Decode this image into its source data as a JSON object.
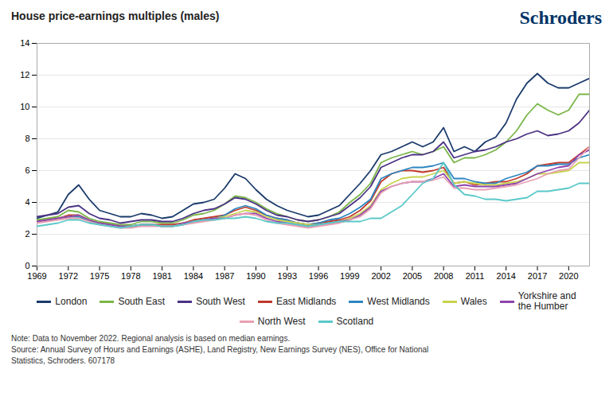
{
  "chart_data": {
    "type": "line",
    "title": "House price-earnings multiples (males)",
    "annotations": [
      {
        "text": "Schroders",
        "color": "#003366"
      }
    ],
    "note": "Note: Data to November 2022. Regional analysis is based on median earnings.\nSource: Annual Survey of Hours and Earnings (ASHE), Land Registry, New Earnings Survey (NES), Office for National\nStatistics, Schroders. 607178",
    "x": [
      1969,
      1970,
      1971,
      1972,
      1973,
      1974,
      1975,
      1976,
      1977,
      1978,
      1979,
      1980,
      1981,
      1982,
      1983,
      1984,
      1985,
      1986,
      1987,
      1988,
      1989,
      1990,
      1991,
      1992,
      1993,
      1994,
      1995,
      1996,
      1997,
      1998,
      1999,
      2000,
      2001,
      2002,
      2003,
      2004,
      2005,
      2006,
      2007,
      2008,
      2009,
      2010,
      2011,
      2012,
      2013,
      2014,
      2015,
      2016,
      2017,
      2018,
      2019,
      2020,
      2021,
      2022
    ],
    "xlim": [
      1969,
      2022
    ],
    "xticks": [
      1969,
      1972,
      1975,
      1978,
      1981,
      1984,
      1987,
      1990,
      1993,
      1996,
      1999,
      2002,
      2005,
      2008,
      2011,
      2014,
      2017,
      2020
    ],
    "ylim": [
      0,
      14
    ],
    "yticks": [
      0,
      2,
      4,
      6,
      8,
      10,
      12,
      14
    ],
    "grid": "y",
    "legend": "bottom",
    "series": [
      {
        "name": "London",
        "color": "#1a3a6b",
        "values": [
          3.0,
          3.2,
          3.4,
          4.5,
          5.1,
          4.2,
          3.5,
          3.3,
          3.1,
          3.1,
          3.3,
          3.2,
          3.0,
          3.1,
          3.5,
          3.9,
          4.0,
          4.2,
          4.9,
          5.8,
          5.5,
          4.8,
          4.2,
          3.8,
          3.5,
          3.3,
          3.1,
          3.2,
          3.5,
          3.8,
          4.5,
          5.2,
          6.0,
          7.0,
          7.2,
          7.5,
          7.8,
          7.5,
          7.8,
          8.7,
          7.2,
          7.5,
          7.2,
          7.8,
          8.1,
          9.0,
          10.5,
          11.5,
          12.1,
          11.5,
          11.2,
          11.2,
          11.5,
          11.8
        ]
      },
      {
        "name": "South East",
        "color": "#7ab648",
        "values": [
          2.9,
          3.0,
          3.1,
          3.5,
          3.4,
          3.0,
          2.8,
          2.7,
          2.6,
          2.6,
          2.8,
          2.8,
          2.7,
          2.7,
          2.9,
          3.2,
          3.3,
          3.5,
          3.9,
          4.4,
          4.3,
          4.0,
          3.6,
          3.3,
          3.1,
          2.9,
          2.8,
          2.9,
          3.1,
          3.4,
          4.0,
          4.5,
          5.2,
          6.5,
          6.8,
          7.0,
          7.2,
          7.0,
          7.2,
          7.5,
          6.5,
          6.8,
          6.8,
          7.0,
          7.3,
          7.8,
          8.5,
          9.5,
          10.2,
          9.8,
          9.5,
          9.8,
          10.8,
          10.8
        ]
      },
      {
        "name": "South West",
        "color": "#4b3285",
        "values": [
          3.1,
          3.2,
          3.3,
          3.7,
          3.8,
          3.3,
          3.0,
          2.9,
          2.7,
          2.8,
          2.9,
          2.9,
          2.8,
          2.8,
          3.0,
          3.3,
          3.5,
          3.6,
          3.9,
          4.3,
          4.2,
          3.9,
          3.5,
          3.2,
          3.1,
          2.9,
          2.8,
          2.9,
          3.1,
          3.3,
          3.8,
          4.3,
          5.0,
          6.2,
          6.5,
          6.8,
          7.0,
          7.0,
          7.2,
          7.8,
          6.8,
          7.0,
          7.2,
          7.3,
          7.5,
          7.8,
          8.0,
          8.3,
          8.5,
          8.2,
          8.3,
          8.5,
          9.0,
          9.8
        ]
      },
      {
        "name": "East Midlands",
        "color": "#c0392b",
        "values": [
          2.8,
          2.9,
          3.0,
          3.2,
          3.2,
          2.9,
          2.7,
          2.6,
          2.5,
          2.5,
          2.6,
          2.6,
          2.6,
          2.6,
          2.7,
          2.9,
          3.0,
          3.1,
          3.2,
          3.5,
          3.7,
          3.5,
          3.2,
          3.0,
          2.9,
          2.7,
          2.6,
          2.7,
          2.8,
          2.9,
          3.1,
          3.5,
          4.1,
          5.3,
          5.8,
          6.0,
          6.0,
          5.9,
          6.0,
          6.2,
          5.2,
          5.3,
          5.1,
          5.2,
          5.3,
          5.3,
          5.5,
          5.8,
          6.3,
          6.4,
          6.5,
          6.5,
          7.0,
          7.5
        ]
      },
      {
        "name": "West Midlands",
        "color": "#2e86c1",
        "values": [
          2.8,
          2.9,
          3.0,
          3.1,
          3.1,
          2.8,
          2.7,
          2.6,
          2.5,
          2.5,
          2.6,
          2.6,
          2.5,
          2.5,
          2.6,
          2.8,
          2.9,
          3.0,
          3.2,
          3.6,
          3.8,
          3.6,
          3.2,
          3.0,
          2.9,
          2.7,
          2.6,
          2.7,
          2.9,
          3.0,
          3.3,
          3.7,
          4.2,
          5.5,
          5.8,
          6.0,
          6.2,
          6.2,
          6.3,
          6.5,
          5.5,
          5.5,
          5.3,
          5.2,
          5.2,
          5.5,
          5.7,
          5.9,
          6.3,
          6.3,
          6.4,
          6.4,
          6.8,
          7.0
        ]
      },
      {
        "name": "Wales",
        "color": "#c8d44e",
        "values": [
          2.8,
          2.9,
          3.0,
          3.1,
          3.2,
          2.9,
          2.7,
          2.6,
          2.5,
          2.5,
          2.6,
          2.6,
          2.5,
          2.5,
          2.7,
          2.8,
          2.9,
          3.0,
          3.1,
          3.3,
          3.5,
          3.4,
          3.1,
          2.9,
          2.8,
          2.7,
          2.6,
          2.6,
          2.7,
          2.8,
          3.0,
          3.3,
          3.8,
          4.8,
          5.2,
          5.5,
          5.6,
          5.6,
          5.8,
          6.0,
          5.2,
          5.3,
          5.2,
          5.1,
          5.1,
          5.2,
          5.3,
          5.5,
          5.8,
          5.8,
          5.9,
          6.0,
          6.5,
          6.5
        ]
      },
      {
        "name": "Yorkshire and\nthe Humber",
        "color": "#8e44ad",
        "values": [
          2.8,
          2.9,
          3.0,
          3.1,
          3.2,
          2.9,
          2.7,
          2.6,
          2.5,
          2.5,
          2.6,
          2.6,
          2.5,
          2.5,
          2.7,
          2.8,
          2.9,
          3.0,
          3.0,
          3.2,
          3.3,
          3.3,
          3.0,
          2.8,
          2.7,
          2.6,
          2.5,
          2.6,
          2.7,
          2.8,
          2.9,
          3.2,
          3.7,
          4.7,
          5.0,
          5.2,
          5.3,
          5.3,
          5.5,
          5.8,
          5.0,
          5.1,
          5.0,
          5.0,
          5.0,
          5.1,
          5.2,
          5.5,
          5.8,
          6.0,
          6.2,
          6.3,
          7.0,
          7.3
        ]
      },
      {
        "name": "North West",
        "color": "#e8a0b4",
        "values": [
          2.7,
          2.8,
          2.9,
          3.0,
          3.0,
          2.8,
          2.6,
          2.5,
          2.4,
          2.4,
          2.5,
          2.5,
          2.5,
          2.5,
          2.6,
          2.7,
          2.8,
          2.9,
          3.0,
          3.2,
          3.3,
          3.2,
          2.9,
          2.7,
          2.6,
          2.5,
          2.4,
          2.5,
          2.6,
          2.7,
          2.9,
          3.1,
          3.6,
          4.6,
          5.0,
          5.2,
          5.3,
          5.3,
          5.4,
          5.6,
          4.9,
          4.9,
          4.8,
          4.8,
          4.9,
          5.0,
          5.1,
          5.3,
          5.5,
          5.8,
          6.0,
          6.1,
          6.8,
          7.5
        ]
      },
      {
        "name": "Scotland",
        "color": "#5bc8c8",
        "values": [
          2.5,
          2.6,
          2.7,
          2.9,
          2.9,
          2.7,
          2.6,
          2.5,
          2.4,
          2.5,
          2.6,
          2.6,
          2.5,
          2.5,
          2.6,
          2.8,
          2.9,
          2.9,
          3.0,
          3.0,
          3.1,
          3.0,
          2.8,
          2.7,
          2.7,
          2.6,
          2.5,
          2.6,
          2.7,
          2.8,
          2.8,
          2.8,
          3.0,
          3.0,
          3.4,
          3.8,
          4.5,
          5.2,
          5.5,
          6.5,
          5.1,
          4.5,
          4.4,
          4.2,
          4.2,
          4.1,
          4.2,
          4.3,
          4.7,
          4.7,
          4.8,
          4.9,
          5.2,
          5.2
        ]
      }
    ]
  }
}
